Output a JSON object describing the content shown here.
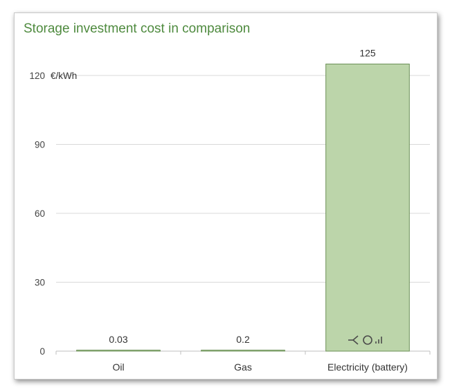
{
  "chart_data": {
    "type": "bar",
    "title": "Storage investment cost in comparison",
    "ylabel": "€/kWh",
    "categories": [
      "Oil",
      "Gas",
      "Electricity (battery)"
    ],
    "values": [
      0.03,
      0.2,
      125
    ],
    "value_labels": [
      "0.03",
      "0.2",
      "125"
    ],
    "ylim": [
      0,
      135
    ],
    "yticks": [
      0,
      30,
      60,
      90,
      120
    ],
    "grid": true,
    "bar_color": "#bcd5aa",
    "bar_edge_color": "#6a8f55",
    "title_color": "#4e8a3e",
    "icon_in_bar": "battery-charge-icon"
  }
}
